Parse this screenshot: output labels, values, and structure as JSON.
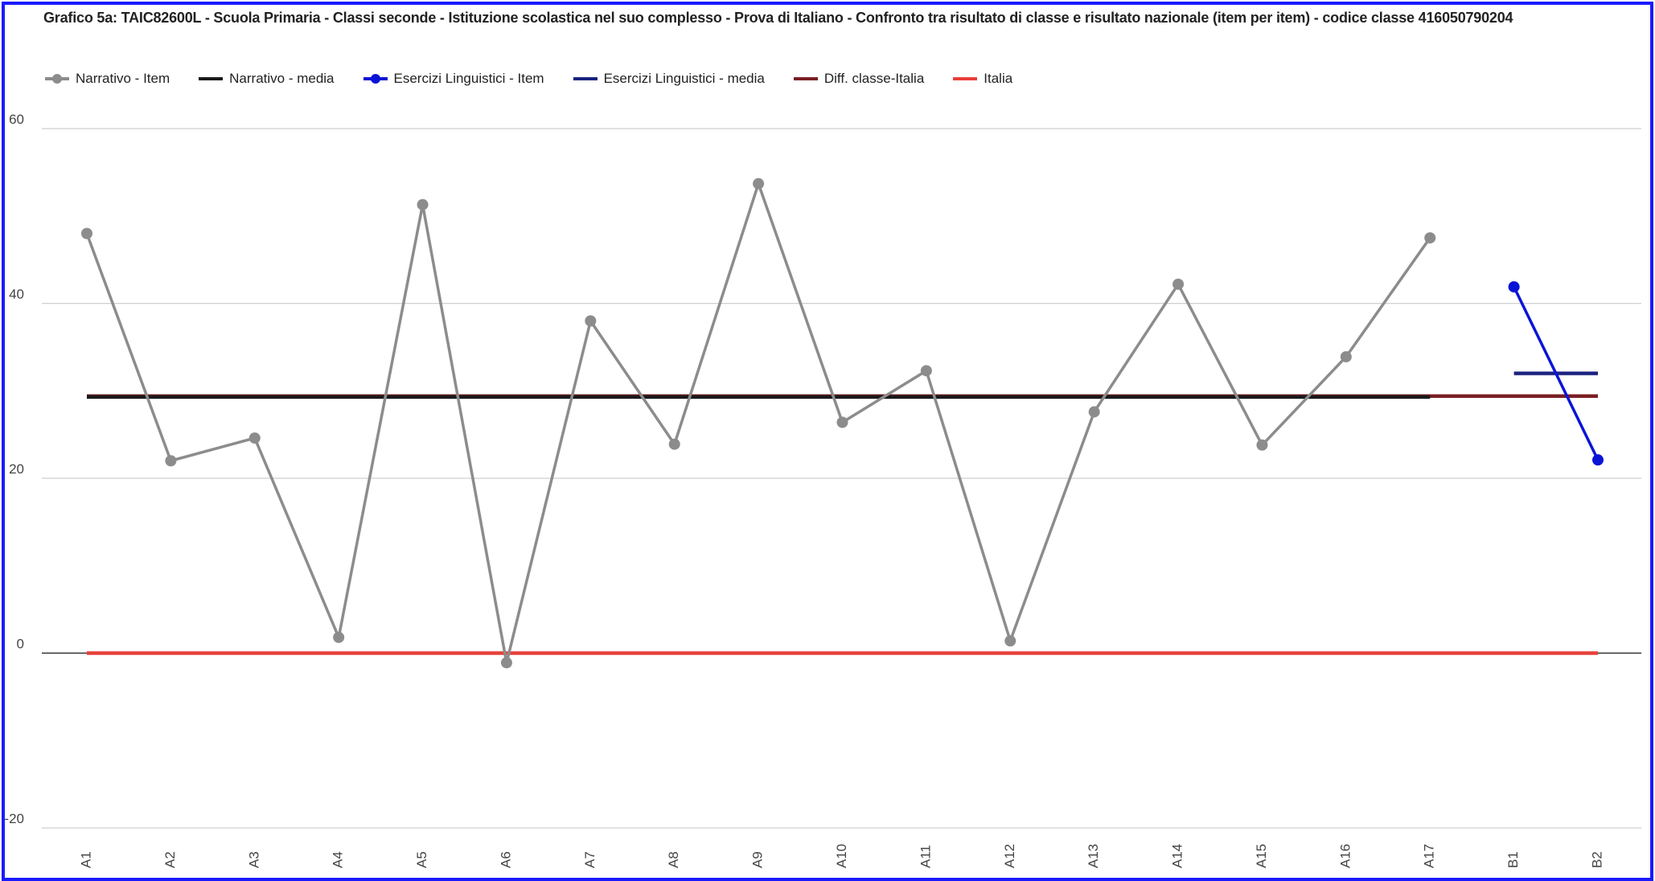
{
  "chart_data": {
    "type": "line",
    "title": "Grafico 5a: TAIC82600L - Scuola Primaria - Classi seconde - Istituzione scolastica nel suo complesso - Prova di Italiano - Confronto tra risultato di classe e risultato nazionale (item per item) - codice classe 416050790204",
    "categories": [
      "A1",
      "A2",
      "A3",
      "A4",
      "A5",
      "A6",
      "A7",
      "A8",
      "A9",
      "A10",
      "A11",
      "A12",
      "A13",
      "A14",
      "A15",
      "A16",
      "A17",
      "B1",
      "B2"
    ],
    "ylim": [
      -20,
      60
    ],
    "yticks": [
      -20,
      0,
      20,
      40,
      60
    ],
    "grid": true,
    "legend": "top",
    "series": [
      {
        "name": "Narrativo - Item",
        "color": "#8c8c8c",
        "markers": true,
        "values": [
          48.0,
          22.0,
          24.6,
          1.8,
          51.3,
          -1.1,
          38.0,
          23.9,
          53.7,
          26.4,
          32.3,
          1.4,
          27.6,
          42.2,
          23.8,
          33.9,
          47.5,
          null,
          null
        ]
      },
      {
        "name": "Narrativo - media",
        "color": "#1a1a1a",
        "markers": false,
        "values": [
          29.3,
          29.3,
          29.3,
          29.3,
          29.3,
          29.3,
          29.3,
          29.3,
          29.3,
          29.3,
          29.3,
          29.3,
          29.3,
          29.3,
          29.3,
          29.3,
          29.3,
          null,
          null
        ]
      },
      {
        "name": "Esercizi Linguistici - Item",
        "color": "#0a14d6",
        "markers": true,
        "values": [
          null,
          null,
          null,
          null,
          null,
          null,
          null,
          null,
          null,
          null,
          null,
          null,
          null,
          null,
          null,
          null,
          null,
          41.9,
          22.1
        ]
      },
      {
        "name": "Esercizi Linguistici - media",
        "color": "#1c2280",
        "markers": false,
        "values": [
          null,
          null,
          null,
          null,
          null,
          null,
          null,
          null,
          null,
          null,
          null,
          null,
          null,
          null,
          null,
          null,
          null,
          32.0,
          32.0
        ]
      },
      {
        "name": "Diff. classe-Italia",
        "color": "#7a1f24",
        "markers": false,
        "values": [
          29.4,
          29.4,
          29.4,
          29.4,
          29.4,
          29.4,
          29.4,
          29.4,
          29.4,
          29.4,
          29.4,
          29.4,
          29.4,
          29.4,
          29.4,
          29.4,
          29.4,
          29.4,
          29.4
        ]
      },
      {
        "name": "Italia",
        "color": "#e8403a",
        "markers": false,
        "values": [
          0,
          0,
          0,
          0,
          0,
          0,
          0,
          0,
          0,
          0,
          0,
          0,
          0,
          0,
          0,
          0,
          0,
          0,
          0
        ]
      }
    ]
  }
}
